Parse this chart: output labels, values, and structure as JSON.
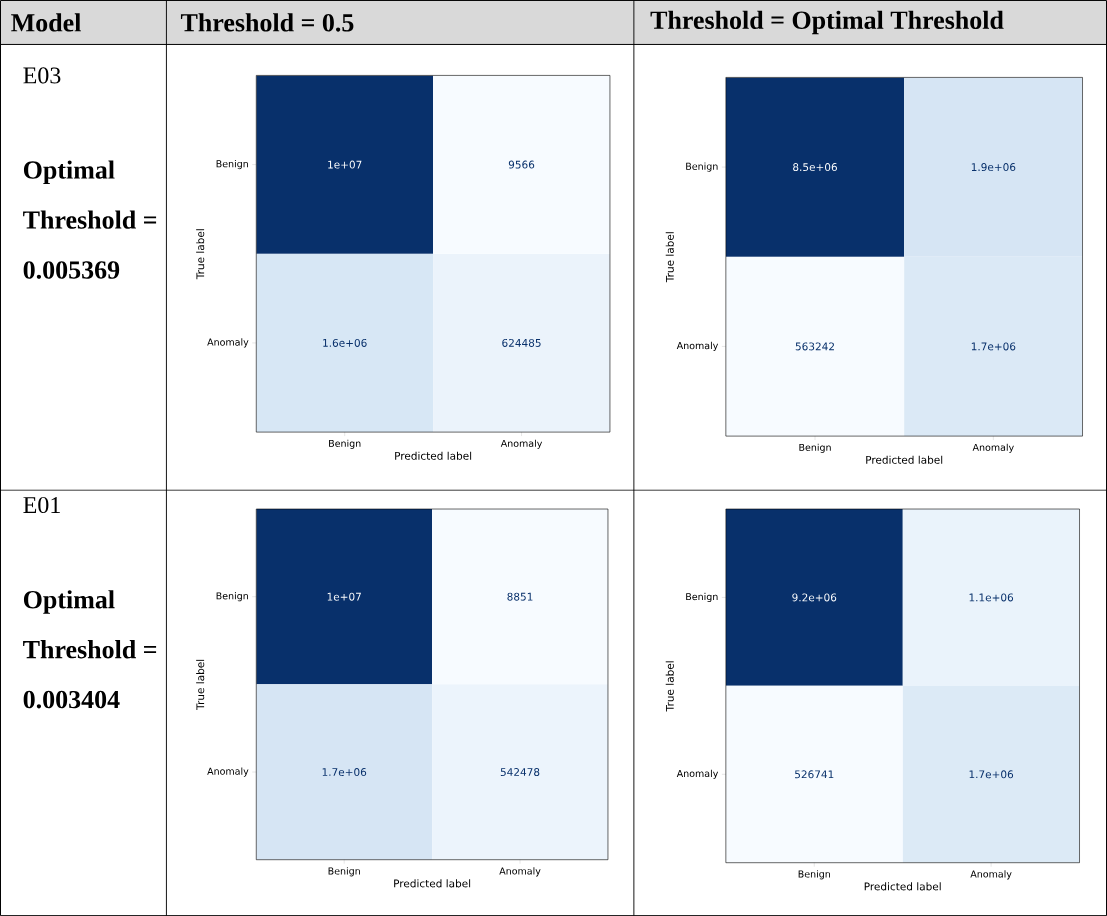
{
  "chart_data": [
    {
      "type": "other",
      "annotations": [
        "Model",
        "Threshold = 0.5",
        "Threshold = Optimal Threshold",
        "E03",
        "Optimal Threshold = 0.005369",
        "E01",
        "Optimal Threshold = 0.003404"
      ]
    },
    {
      "type": "heatmap",
      "xlabel": "Predicted label",
      "ylabel": "True label",
      "categories": [
        "Benign",
        "Anomaly"
      ],
      "y_categories": [
        "Benign",
        "Anomaly"
      ],
      "cells": [
        [
          10000000,
          9566
        ],
        [
          1600000,
          624485
        ]
      ],
      "cell_labels": [
        [
          "1e+07",
          "9566"
        ],
        [
          "1.6e+06",
          "624485"
        ]
      ]
    },
    {
      "type": "heatmap",
      "xlabel": "Predicted label",
      "ylabel": "True label",
      "categories": [
        "Benign",
        "Anomaly"
      ],
      "y_categories": [
        "Benign",
        "Anomaly"
      ],
      "cells": [
        [
          8500000,
          1900000
        ],
        [
          563242,
          1700000
        ]
      ],
      "cell_labels": [
        [
          "8.5e+06",
          "1.9e+06"
        ],
        [
          "563242",
          "1.7e+06"
        ]
      ]
    },
    {
      "type": "heatmap",
      "xlabel": "Predicted label",
      "ylabel": "True label",
      "categories": [
        "Benign",
        "Anomaly"
      ],
      "y_categories": [
        "Benign",
        "Anomaly"
      ],
      "cells": [
        [
          10000000,
          8851
        ],
        [
          1700000,
          542478
        ]
      ],
      "cell_labels": [
        [
          "1e+07",
          "8851"
        ],
        [
          "1.7e+06",
          "542478"
        ]
      ]
    },
    {
      "type": "heatmap",
      "xlabel": "Predicted label",
      "ylabel": "True label",
      "categories": [
        "Benign",
        "Anomaly"
      ],
      "y_categories": [
        "Benign",
        "Anomaly"
      ],
      "cells": [
        [
          9200000,
          1100000
        ],
        [
          526741,
          1700000
        ]
      ],
      "cell_labels": [
        [
          "9.2e+06",
          "1.1e+06"
        ],
        [
          "526741",
          "1.7e+06"
        ]
      ]
    }
  ]
}
